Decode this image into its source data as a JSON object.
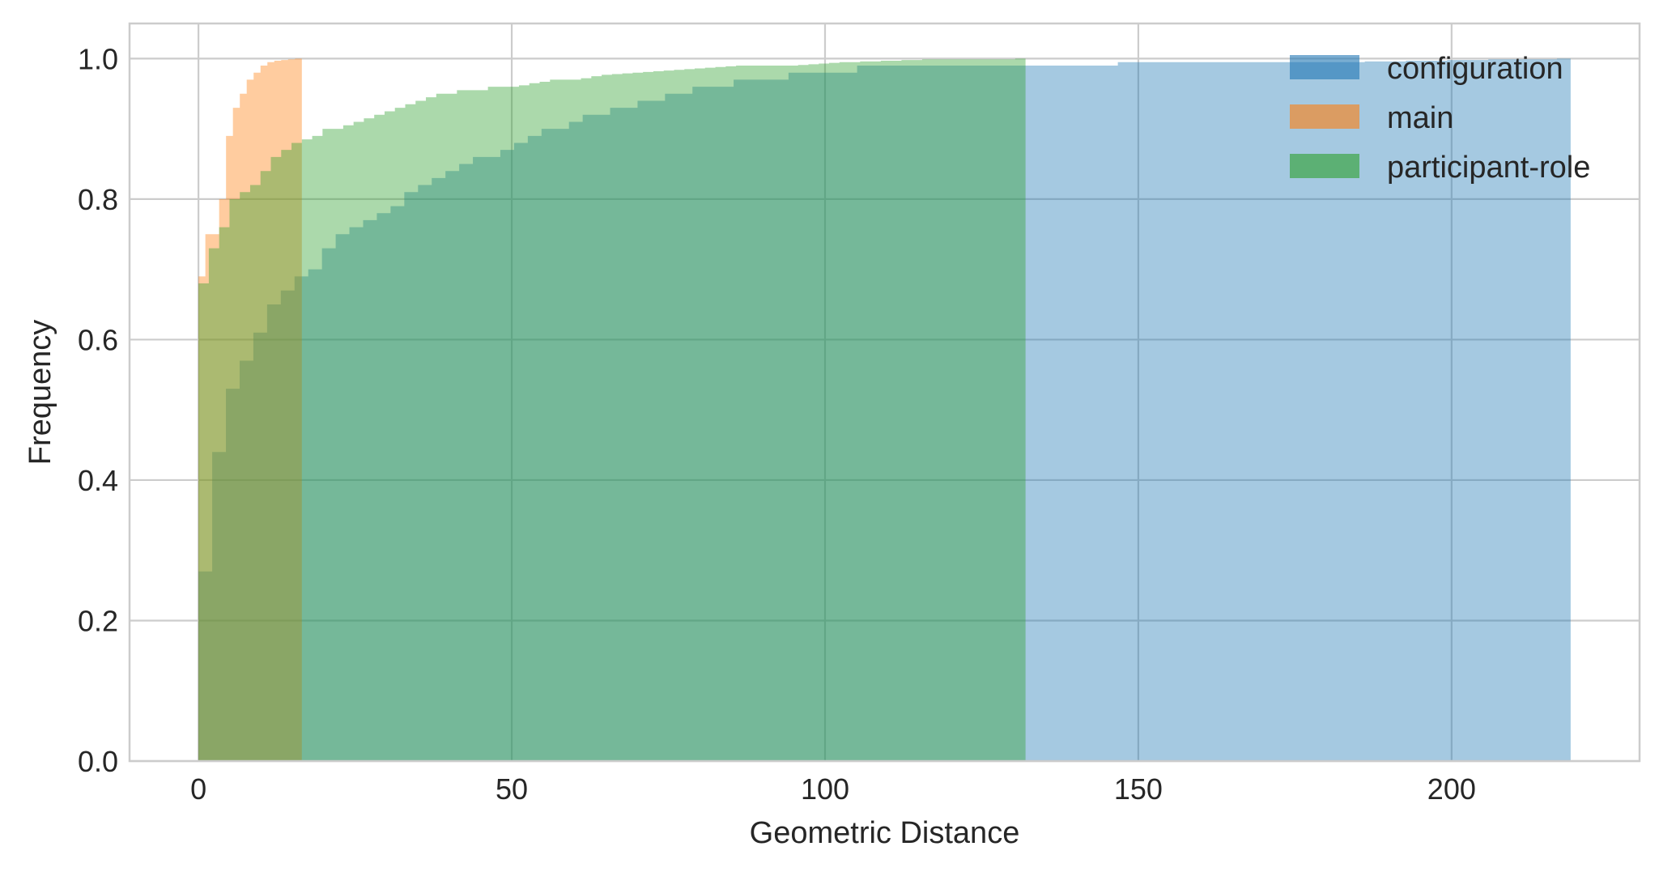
{
  "chart_data": {
    "type": "histogram",
    "histtype": "stepfilled",
    "cumulative": true,
    "density": true,
    "title": "",
    "xlabel": "Geometric Distance",
    "ylabel": "Frequency",
    "xlim": [
      -11,
      230
    ],
    "ylim": [
      0,
      1.05
    ],
    "xticks": [
      0,
      50,
      100,
      150,
      200
    ],
    "yticks": [
      0.0,
      0.2,
      0.4,
      0.6,
      0.8,
      1.0
    ],
    "xtick_labels": [
      "0",
      "50",
      "100",
      "150",
      "200"
    ],
    "ytick_labels": [
      "0.0",
      "0.2",
      "0.4",
      "0.6",
      "0.8",
      "1.0"
    ],
    "grid": true,
    "legend_position": "top-right",
    "alpha": 0.4,
    "series": [
      {
        "name": "configuration",
        "color": "#1f77b4",
        "bin_start": 0,
        "bin_width": 2.19,
        "values": [
          0.27,
          0.44,
          0.53,
          0.57,
          0.61,
          0.65,
          0.67,
          0.69,
          0.7,
          0.73,
          0.75,
          0.76,
          0.77,
          0.78,
          0.79,
          0.81,
          0.82,
          0.83,
          0.84,
          0.85,
          0.86,
          0.86,
          0.87,
          0.88,
          0.89,
          0.9,
          0.9,
          0.91,
          0.92,
          0.92,
          0.93,
          0.93,
          0.94,
          0.94,
          0.95,
          0.95,
          0.96,
          0.96,
          0.96,
          0.97,
          0.97,
          0.97,
          0.97,
          0.98,
          0.98,
          0.98,
          0.98,
          0.98,
          0.99,
          0.99,
          0.99,
          0.99,
          0.99,
          0.99,
          0.99,
          0.99,
          0.99,
          0.99,
          0.99,
          0.99,
          0.99,
          0.99,
          0.99,
          0.99,
          0.99,
          0.99,
          0.99,
          0.995,
          0.995,
          0.995,
          0.995,
          0.995,
          0.995,
          0.995,
          0.995,
          0.995,
          0.995,
          0.995,
          0.995,
          0.995,
          0.995,
          0.995,
          0.995,
          0.995,
          0.995,
          0.996,
          0.996,
          0.996,
          0.997,
          0.997,
          0.997,
          0.998,
          0.998,
          0.998,
          0.999,
          0.999,
          0.999,
          0.999,
          0.999,
          1.0
        ]
      },
      {
        "name": "main",
        "color": "#ff7f0e",
        "bin_start": 0,
        "bin_width": 1.1,
        "values": [
          0.69,
          0.75,
          0.75,
          0.8,
          0.89,
          0.93,
          0.95,
          0.97,
          0.98,
          0.99,
          0.995,
          0.997,
          0.998,
          0.999,
          1.0
        ]
      },
      {
        "name": "participant-role",
        "color": "#2ca02c",
        "bin_start": 0,
        "bin_width": 1.65,
        "values": [
          0.68,
          0.73,
          0.76,
          0.8,
          0.81,
          0.82,
          0.84,
          0.86,
          0.87,
          0.88,
          0.885,
          0.89,
          0.9,
          0.9,
          0.905,
          0.91,
          0.915,
          0.92,
          0.925,
          0.93,
          0.935,
          0.94,
          0.945,
          0.95,
          0.95,
          0.955,
          0.955,
          0.955,
          0.96,
          0.96,
          0.96,
          0.962,
          0.965,
          0.967,
          0.97,
          0.97,
          0.97,
          0.972,
          0.975,
          0.977,
          0.978,
          0.979,
          0.98,
          0.981,
          0.982,
          0.983,
          0.984,
          0.985,
          0.986,
          0.987,
          0.988,
          0.989,
          0.99,
          0.99,
          0.99,
          0.99,
          0.99,
          0.99,
          0.991,
          0.992,
          0.993,
          0.994,
          0.995,
          0.995,
          0.996,
          0.996,
          0.997,
          0.997,
          0.998,
          0.998,
          0.999,
          0.999,
          0.999,
          0.999,
          0.999,
          0.999,
          0.999,
          0.999,
          0.999,
          1.0
        ]
      }
    ]
  }
}
